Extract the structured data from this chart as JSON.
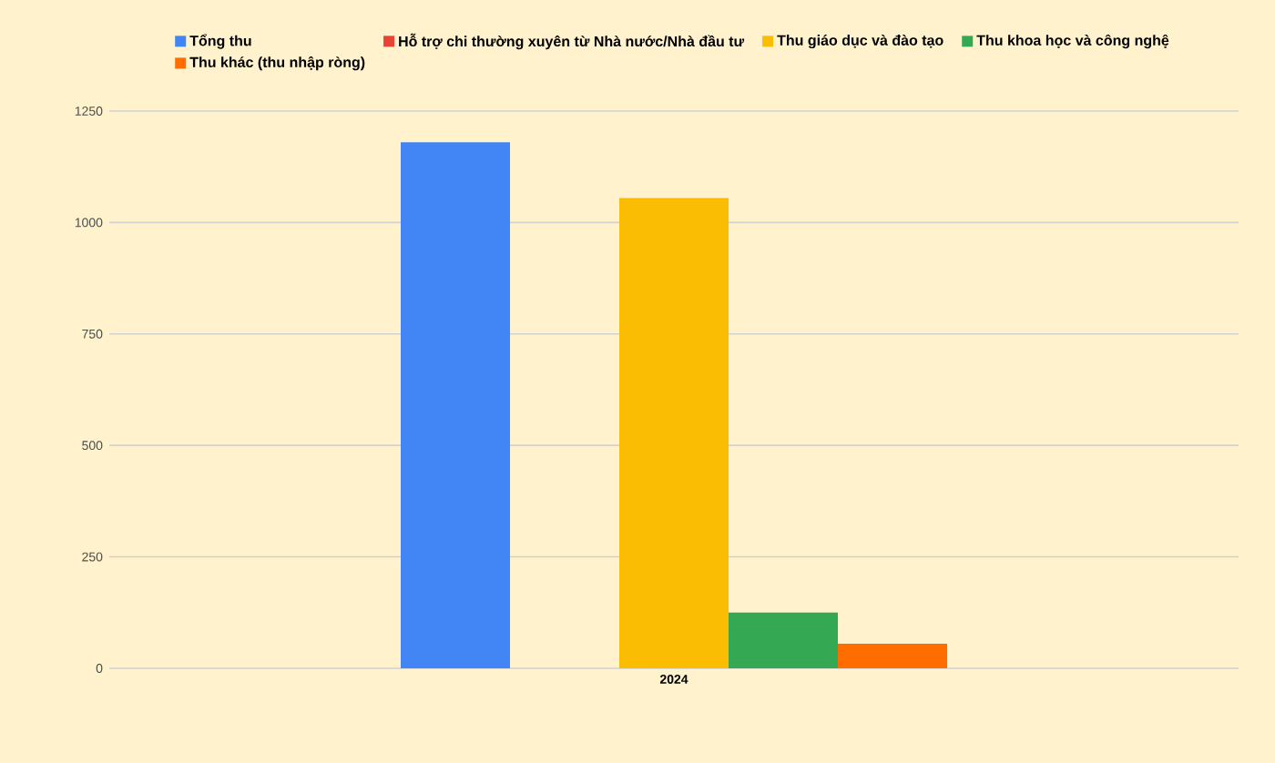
{
  "chart_data": {
    "type": "bar",
    "categories": [
      "2024"
    ],
    "series": [
      {
        "name": "Tổng thu",
        "color": "#4285f4",
        "values": [
          1180
        ]
      },
      {
        "name": "Hỗ trợ chi thường xuyên từ Nhà nước/Nhà đầu tư",
        "color": "#ea4335",
        "values": [
          0
        ]
      },
      {
        "name": "Thu giáo dục và đào tạo",
        "color": "#fbbc04",
        "values": [
          1055
        ]
      },
      {
        "name": "Thu khoa học và công nghệ",
        "color": "#34a853",
        "values": [
          125
        ]
      },
      {
        "name": "Thu khác (thu nhập ròng)",
        "color": "#ff6d01",
        "values": [
          55
        ]
      }
    ],
    "ylim": [
      0,
      1250
    ],
    "yticks": [
      0,
      250,
      500,
      750,
      1000,
      1250
    ],
    "grid": "y",
    "legend": "top"
  }
}
